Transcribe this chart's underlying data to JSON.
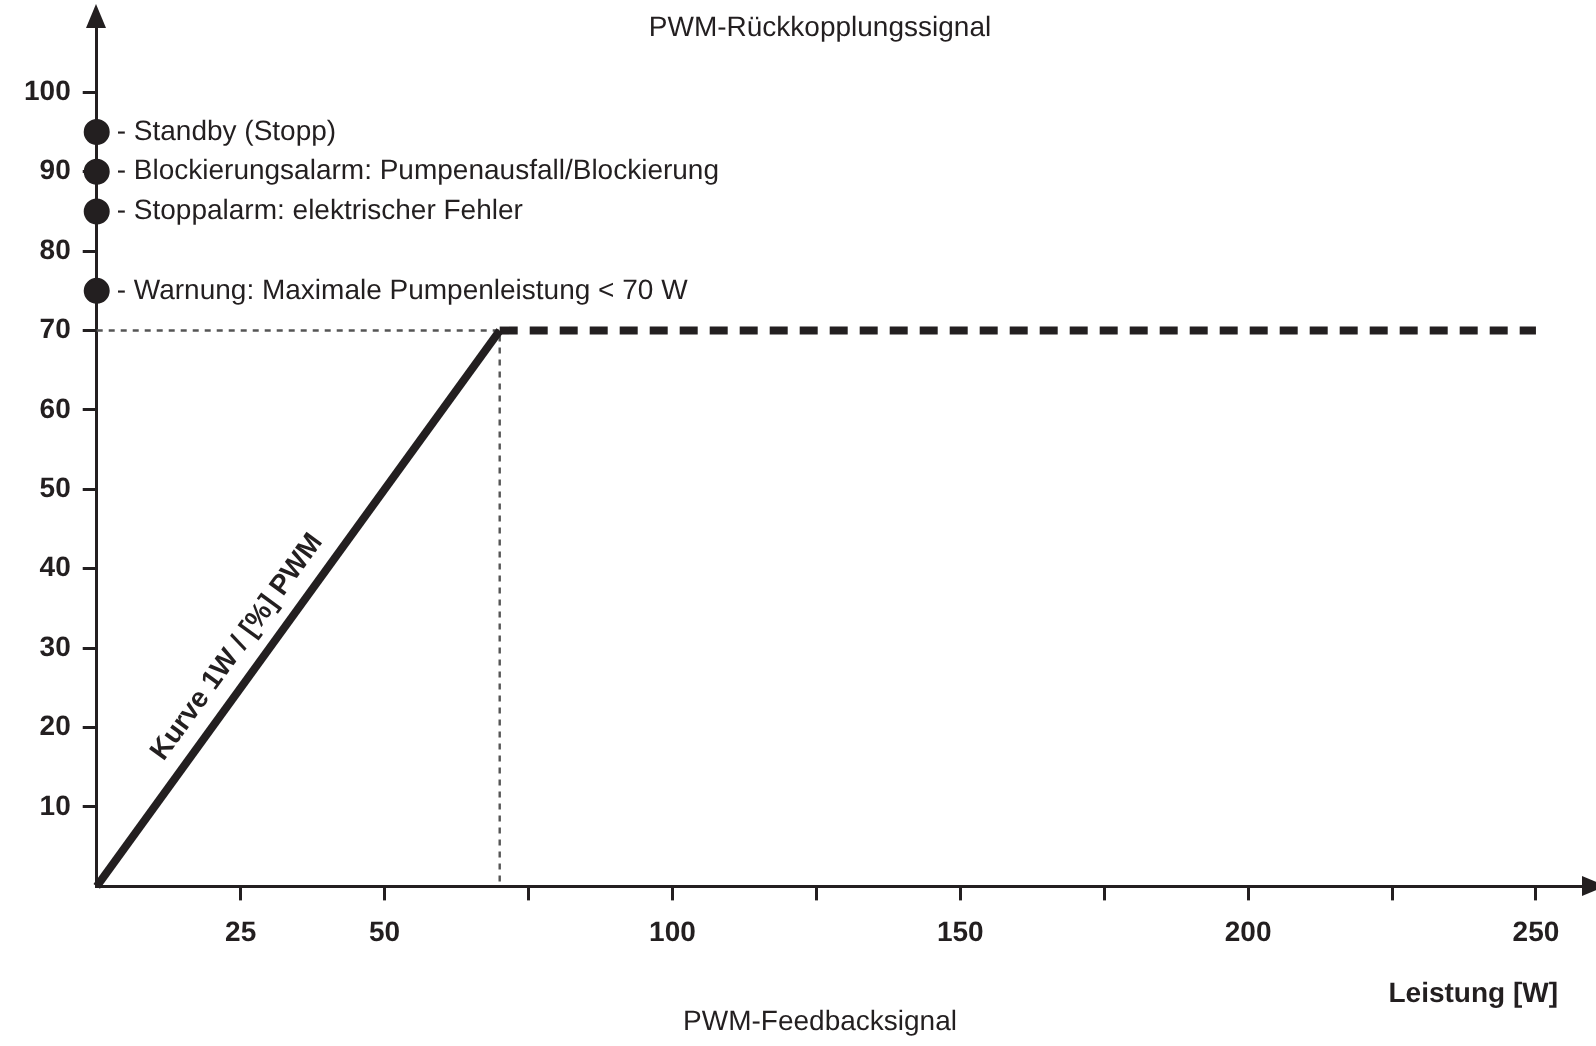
{
  "chart_data": {
    "type": "line",
    "title": "PWM-Rückkopplungssignal",
    "subtitle": "PWM-Feedbacksignal",
    "xlabel": "Leistung [W]",
    "xlim": [
      0,
      258
    ],
    "xticks": [
      25,
      50,
      {
        "value": 75,
        "label": null
      },
      100,
      {
        "value": 125,
        "label": null
      },
      150,
      {
        "value": 175,
        "label": null
      },
      200,
      {
        "value": 225,
        "label": null
      },
      250
    ],
    "ylim": [
      0,
      108
    ],
    "yticks": [
      10,
      20,
      30,
      40,
      50,
      60,
      70,
      80,
      90,
      100
    ],
    "grid": false,
    "series": [
      {
        "x": [
          0,
          70
        ],
        "values": [
          0,
          70
        ],
        "color": "#231f20",
        "line_style": "solid",
        "marker": "none"
      },
      {
        "x": [
          70,
          250
        ],
        "values": [
          70,
          70
        ],
        "color": "#231f20",
        "line_style": "dashed",
        "marker": "none"
      },
      {
        "x": [
          0,
          70,
          70
        ],
        "values": [
          70,
          70,
          0
        ],
        "color": "#555555",
        "line_style": "dotted",
        "marker": "none"
      },
      {
        "type": "scatter",
        "x": [
          0,
          0,
          0,
          0
        ],
        "values": [
          95,
          90,
          85,
          75
        ],
        "color": "#231f20",
        "marker": "circle"
      }
    ],
    "annotations": [
      "- Standby (Stopp)",
      "- Blockierungsalarm: Pumpenausfall/Blockierung",
      "- Stoppalarm: elektrischer Fehler",
      "- Warnung: Maximale Pumpenleistung < 70 W",
      "Kurve 1W / [%] PWM"
    ]
  }
}
